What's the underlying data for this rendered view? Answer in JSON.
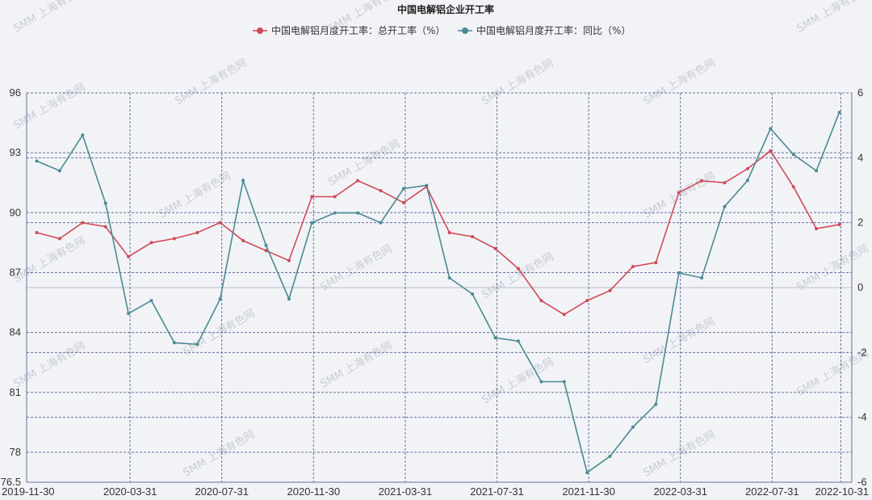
{
  "chart_data": {
    "type": "line",
    "title": "中国电解铝企业开工率",
    "watermark": "SMM 上海有色网",
    "colors": {
      "series1": "#d04a57",
      "series2": "#4a8a93"
    },
    "legend_position": "top-center",
    "grid": true,
    "x_tick_labels": [
      "2019-11-30",
      "2020-03-31",
      "2020-07-31",
      "2020-11-30",
      "2021-03-31",
      "2021-07-31",
      "2021-11-30",
      "2022-03-31",
      "2022-07-31",
      "2022-10-31"
    ],
    "y_left": {
      "ylim": [
        76.5,
        96
      ],
      "ticks": [
        96,
        93,
        90,
        87,
        84,
        81,
        78,
        76.5
      ]
    },
    "y_right": {
      "ylim": [
        -6,
        6
      ],
      "ticks": [
        6,
        4,
        2,
        0,
        -2,
        -4,
        -6
      ]
    },
    "x": [
      "2019-11",
      "2019-12",
      "2020-01",
      "2020-02",
      "2020-03",
      "2020-04",
      "2020-05",
      "2020-06",
      "2020-07",
      "2020-08",
      "2020-09",
      "2020-10",
      "2020-11",
      "2020-12",
      "2021-01",
      "2021-02",
      "2021-03",
      "2021-04",
      "2021-05",
      "2021-06",
      "2021-07",
      "2021-08",
      "2021-09",
      "2021-10",
      "2021-11",
      "2021-12",
      "2022-01",
      "2022-02",
      "2022-03",
      "2022-04",
      "2022-05",
      "2022-06",
      "2022-07",
      "2022-08",
      "2022-09",
      "2022-10"
    ],
    "series": [
      {
        "name": "中国电解铝月度开工率：总开工率（%）",
        "axis": "left",
        "values": [
          89.0,
          88.7,
          89.5,
          89.3,
          87.8,
          88.5,
          88.7,
          89.0,
          89.5,
          88.6,
          88.1,
          87.6,
          90.8,
          90.8,
          91.6,
          91.1,
          90.5,
          91.3,
          89.0,
          88.8,
          88.2,
          87.2,
          85.6,
          84.9,
          85.6,
          86.1,
          87.3,
          87.5,
          91.0,
          91.6,
          91.5,
          92.2,
          93.1,
          91.3,
          89.2,
          89.4
        ]
      },
      {
        "name": "中国电解铝月度开工率：同比（%）",
        "axis": "right",
        "values": [
          3.9,
          3.6,
          4.7,
          2.6,
          -0.8,
          -0.4,
          -1.7,
          -1.75,
          -0.35,
          3.3,
          1.3,
          -0.35,
          2.0,
          2.3,
          2.3,
          2.0,
          3.05,
          3.15,
          0.3,
          -0.2,
          -1.55,
          -1.65,
          -2.9,
          -2.9,
          -5.7,
          -5.2,
          -4.3,
          -3.6,
          0.45,
          0.3,
          2.5,
          3.3,
          4.9,
          4.1,
          3.6,
          5.4
        ]
      }
    ]
  }
}
